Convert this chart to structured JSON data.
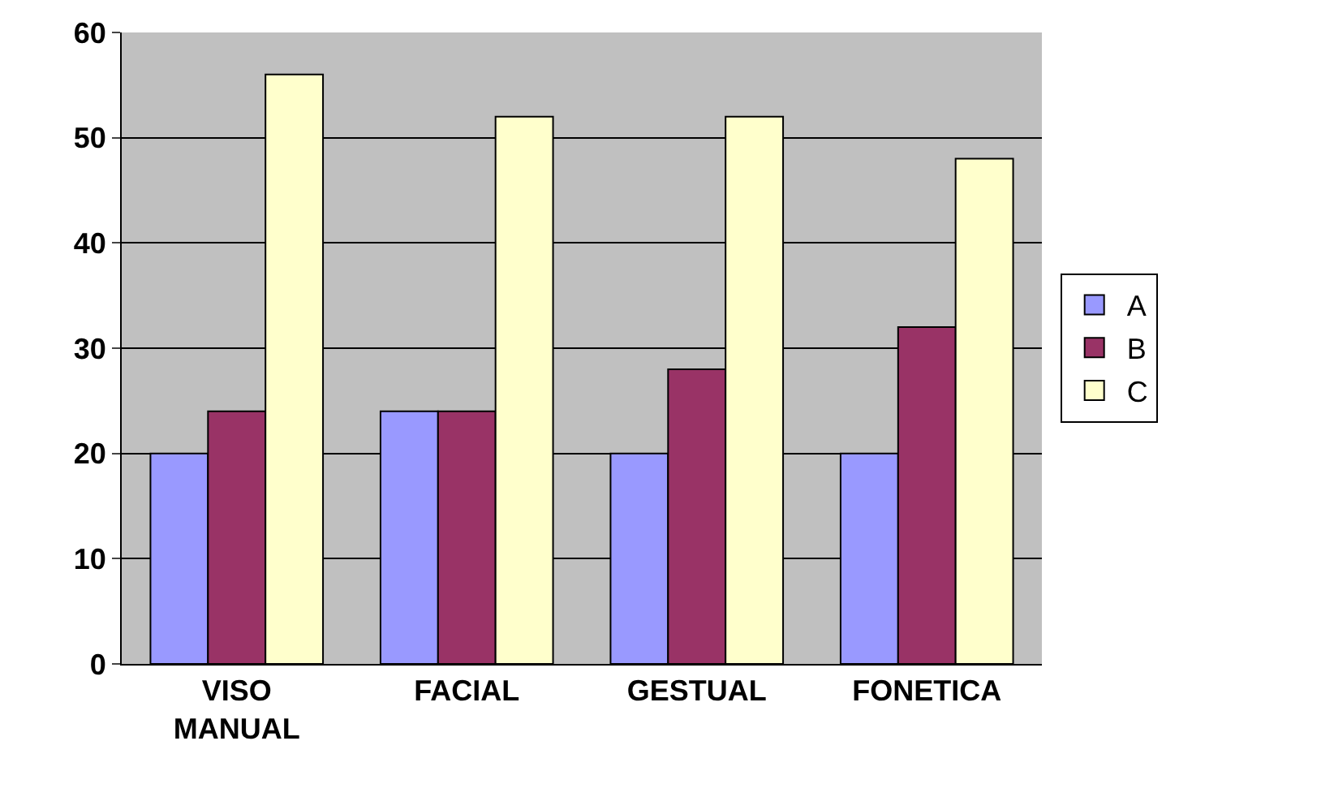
{
  "chart_data": {
    "type": "bar",
    "categories": [
      "VISO MANUAL",
      "FACIAL",
      "GESTUAL",
      "FONETICA"
    ],
    "series": [
      {
        "name": "A",
        "color": "#9999ff",
        "values": [
          20,
          24,
          20,
          20
        ]
      },
      {
        "name": "B",
        "color": "#993366",
        "values": [
          24,
          24,
          28,
          32
        ]
      },
      {
        "name": "C",
        "color": "#ffffcc",
        "values": [
          56,
          52,
          52,
          48
        ]
      }
    ],
    "ylim": [
      0,
      60
    ],
    "yticks": [
      0,
      10,
      20,
      30,
      40,
      50,
      60
    ],
    "grid": "y",
    "legend": "right"
  }
}
